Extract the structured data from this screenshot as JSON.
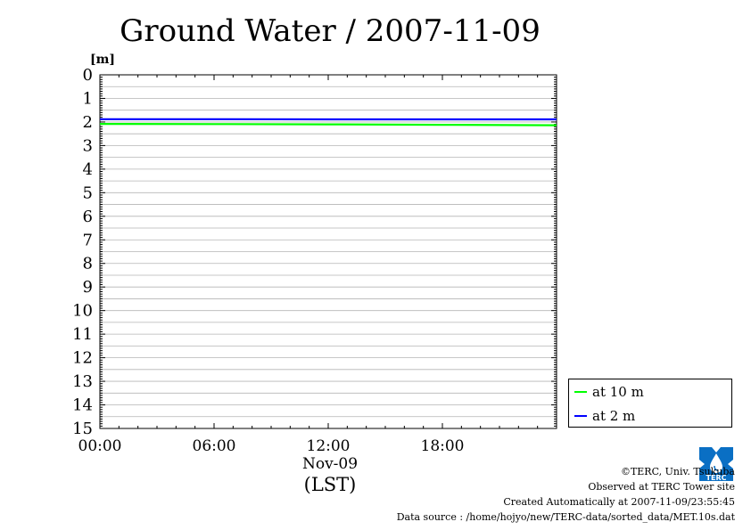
{
  "chart_data": {
    "type": "line",
    "title": "Ground Water / 2007-11-09",
    "ylabel": "[m]",
    "y_inverted": true,
    "ylim": [
      0,
      15
    ],
    "yticks": [
      "0",
      "1",
      "2",
      "3",
      "4",
      "5",
      "6",
      "7",
      "8",
      "9",
      "10",
      "11",
      "12",
      "13",
      "14",
      "15"
    ],
    "xlim_hours": [
      0,
      24
    ],
    "xticks": [
      {
        "hour": 0,
        "label": "00:00"
      },
      {
        "hour": 6,
        "label": "06:00"
      },
      {
        "hour": 12,
        "label": "12:00"
      },
      {
        "hour": 18,
        "label": "18:00"
      }
    ],
    "date_label": "Nov-09",
    "xlabel": "(LST)",
    "grid": true,
    "legend_position": "bottom-right, outside plot",
    "series": [
      {
        "name": "at 10 m",
        "color": "#00ff00",
        "x": [
          0,
          6,
          12,
          18,
          24
        ],
        "values": [
          2.08,
          2.09,
          2.1,
          2.12,
          2.14
        ]
      },
      {
        "name": "at 2 m",
        "color": "#0000ff",
        "x": [
          0,
          6,
          12,
          18,
          24
        ],
        "values": [
          1.88,
          1.88,
          1.89,
          1.89,
          1.89
        ]
      }
    ]
  },
  "footer": {
    "copyright": "©TERC, Univ. Tsukuba",
    "observed": "Observed at TERC Tower site",
    "created": "Created Automatically at 2007-11-09/23:55:45",
    "source": "Data source : /home/hojyo/new/TERC-data/sorted_data/MET.10s.dat"
  },
  "logo": {
    "text": "TERC",
    "color": "#0a6fc4",
    "icon": "water-drop-logo"
  }
}
